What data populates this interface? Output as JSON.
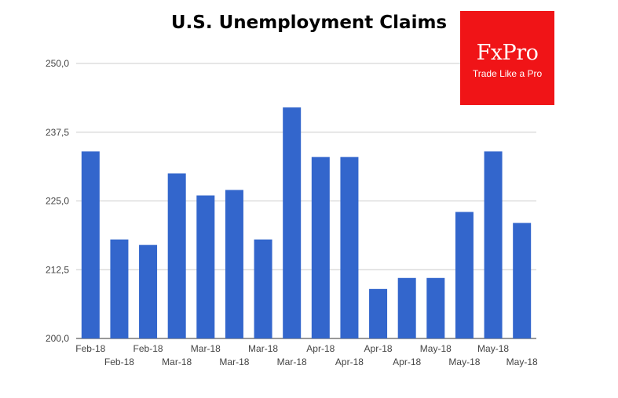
{
  "chart_data": {
    "type": "bar",
    "title": "U.S. Unemployment Claims",
    "xlabel": "",
    "ylabel": "",
    "ylim": [
      200,
      250
    ],
    "yticks": [
      "200,0",
      "212,5",
      "225,0",
      "237,5",
      "250,0"
    ],
    "categories": [
      "Feb-18",
      "Feb-18",
      "Feb-18",
      "Mar-18",
      "Mar-18",
      "Mar-18",
      "Mar-18",
      "Mar-18",
      "Apr-18",
      "Apr-18",
      "Apr-18",
      "Apr-18",
      "May-18",
      "May-18",
      "May-18",
      "May-18"
    ],
    "values": [
      234,
      218,
      217,
      230,
      226,
      227,
      218,
      242,
      233,
      233,
      209,
      211,
      211,
      223,
      234,
      221
    ],
    "bar_color": "#3366cc",
    "grid": true,
    "legend": "none"
  },
  "logo": {
    "brand": "FxPro",
    "tagline": "Trade Like a Pro",
    "color": "#f01417"
  }
}
